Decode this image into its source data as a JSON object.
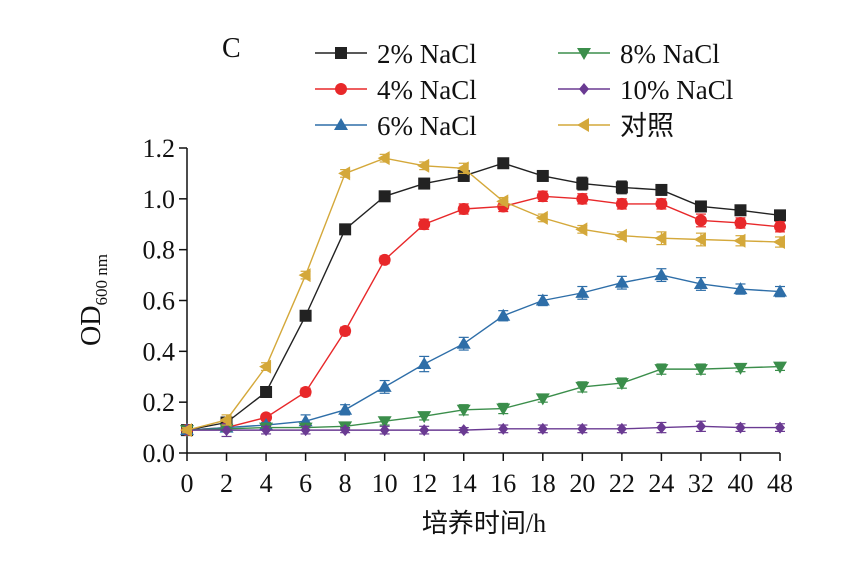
{
  "chart_data": {
    "type": "line",
    "panel_label": "C",
    "xlabel": "培养时间/h",
    "ylabel_main": "OD",
    "ylabel_sub": "600 nm",
    "ylim": [
      0,
      1.2
    ],
    "yticks": [
      "0.0",
      "0.2",
      "0.4",
      "0.6",
      "0.8",
      "1.0",
      "1.2"
    ],
    "categories": [
      "0",
      "2",
      "4",
      "6",
      "8",
      "10",
      "12",
      "14",
      "16",
      "18",
      "20",
      "22",
      "24",
      "32",
      "40",
      "48"
    ],
    "series": [
      {
        "name": "2% NaCl",
        "color": "#222222",
        "marker": "square",
        "values": [
          0.09,
          0.12,
          0.24,
          0.54,
          0.88,
          1.01,
          1.06,
          1.09,
          1.14,
          1.09,
          1.06,
          1.045,
          1.035,
          0.97,
          0.955,
          0.935
        ],
        "errors": [
          0.01,
          0.01,
          0.015,
          0.015,
          0.015,
          0.015,
          0.02,
          0.02,
          0.015,
          0.015,
          0.025,
          0.025,
          0.015,
          0.02,
          0.015,
          0.015
        ]
      },
      {
        "name": "4% NaCl",
        "color": "#e8282a",
        "marker": "circle",
        "values": [
          0.09,
          0.1,
          0.14,
          0.24,
          0.48,
          0.76,
          0.9,
          0.96,
          0.97,
          1.01,
          1.0,
          0.98,
          0.98,
          0.915,
          0.905,
          0.89
        ],
        "errors": [
          0.01,
          0.01,
          0.01,
          0.015,
          0.015,
          0.015,
          0.02,
          0.02,
          0.02,
          0.02,
          0.02,
          0.02,
          0.02,
          0.025,
          0.02,
          0.02
        ]
      },
      {
        "name": "6% NaCl",
        "color": "#2e6ea8",
        "marker": "triangle-up",
        "values": [
          0.09,
          0.1,
          0.11,
          0.125,
          0.17,
          0.26,
          0.35,
          0.43,
          0.54,
          0.6,
          0.63,
          0.67,
          0.7,
          0.665,
          0.645,
          0.635
        ],
        "errors": [
          0.01,
          0.01,
          0.01,
          0.025,
          0.02,
          0.025,
          0.03,
          0.025,
          0.02,
          0.02,
          0.025,
          0.025,
          0.025,
          0.025,
          0.02,
          0.02
        ]
      },
      {
        "name": "8% NaCl",
        "color": "#3b8e4b",
        "marker": "triangle-down",
        "values": [
          0.09,
          0.095,
          0.1,
          0.1,
          0.105,
          0.125,
          0.145,
          0.17,
          0.175,
          0.215,
          0.26,
          0.275,
          0.33,
          0.33,
          0.335,
          0.34
        ],
        "errors": [
          0.01,
          0.01,
          0.01,
          0.01,
          0.01,
          0.015,
          0.015,
          0.02,
          0.02,
          0.015,
          0.02,
          0.02,
          0.02,
          0.02,
          0.015,
          0.015
        ]
      },
      {
        "name": "10% NaCl",
        "color": "#6a3a92",
        "marker": "diamond",
        "values": [
          0.09,
          0.09,
          0.09,
          0.09,
          0.09,
          0.09,
          0.09,
          0.09,
          0.095,
          0.095,
          0.095,
          0.095,
          0.1,
          0.105,
          0.1,
          0.1
        ],
        "errors": [
          0.01,
          0.025,
          0.015,
          0.015,
          0.01,
          0.015,
          0.015,
          0.01,
          0.015,
          0.015,
          0.015,
          0.015,
          0.02,
          0.02,
          0.015,
          0.015
        ]
      },
      {
        "name": "对照",
        "color": "#d4a83a",
        "marker": "triangle-left",
        "values": [
          0.09,
          0.13,
          0.34,
          0.7,
          1.1,
          1.16,
          1.13,
          1.12,
          0.99,
          0.925,
          0.88,
          0.855,
          0.845,
          0.84,
          0.835,
          0.83
        ],
        "errors": [
          0.01,
          0.02,
          0.015,
          0.015,
          0.015,
          0.015,
          0.015,
          0.02,
          0.015,
          0.015,
          0.015,
          0.015,
          0.025,
          0.025,
          0.02,
          0.02
        ]
      }
    ],
    "legend_position": "top"
  }
}
